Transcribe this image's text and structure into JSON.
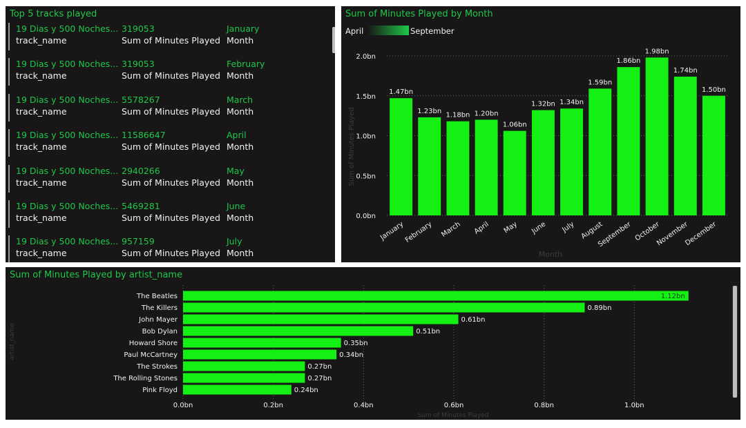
{
  "tracks_card": {
    "title": "Top 5 tracks played",
    "field_labels": [
      "track_name",
      "Sum of Minutes Played",
      "Month"
    ],
    "rows": [
      {
        "track": "19 Dias y 500 Noches...",
        "minutes": "319053",
        "month": "January"
      },
      {
        "track": "19 Dias y 500 Noches...",
        "minutes": "319053",
        "month": "February"
      },
      {
        "track": "19 Dias y 500 Noches...",
        "minutes": "5578267",
        "month": "March"
      },
      {
        "track": "19 Dias y 500 Noches...",
        "minutes": "11586647",
        "month": "April"
      },
      {
        "track": "19 Dias y 500 Noches...",
        "minutes": "2940266",
        "month": "May"
      },
      {
        "track": "19 Dias y 500 Noches...",
        "minutes": "5469281",
        "month": "June"
      },
      {
        "track": "19 Dias y 500 Noches...",
        "minutes": "957159",
        "month": "July"
      }
    ]
  },
  "monthly_panel": {
    "title": "Sum of Minutes Played by Month",
    "legend_start": "April",
    "legend_end": "September"
  },
  "artists_panel": {
    "title": "Sum of Minutes Played by artist_name"
  },
  "colors": {
    "accent": "#1ec84a",
    "bar": "#14f014",
    "panel_bg": "#181616",
    "text": "#f2f2f2"
  },
  "chart_data": [
    {
      "type": "bar",
      "title": "Sum of Minutes Played by Month",
      "xlabel": "Month",
      "ylabel": "Sum of Minutes Played",
      "categories": [
        "January",
        "February",
        "March",
        "April",
        "May",
        "June",
        "July",
        "August",
        "September",
        "October",
        "November",
        "December"
      ],
      "values": [
        1.47,
        1.23,
        1.18,
        1.2,
        1.06,
        1.32,
        1.34,
        1.59,
        1.86,
        1.98,
        1.74,
        1.5
      ],
      "data_labels": [
        "1.47bn",
        "1.23bn",
        "1.18bn",
        "1.20bn",
        "1.06bn",
        "1.32bn",
        "1.34bn",
        "1.59bn",
        "1.86bn",
        "1.98bn",
        "1.74bn",
        "1.50bn"
      ],
      "ylim": [
        0,
        2.0
      ],
      "yticks": [
        "0.0bn",
        "0.5bn",
        "1.0bn",
        "1.5bn",
        "2.0bn"
      ],
      "grid": true,
      "legend": "top-left gradient"
    },
    {
      "type": "bar",
      "orientation": "horizontal",
      "title": "Sum of Minutes Played by artist_name",
      "xlabel": "Sum of Minutes Played",
      "ylabel": "artist_name",
      "categories": [
        "The Beatles",
        "The Killers",
        "John Mayer",
        "Bob Dylan",
        "Howard Shore",
        "Paul McCartney",
        "The Strokes",
        "The Rolling Stones",
        "Pink Floyd"
      ],
      "values": [
        1.12,
        0.89,
        0.61,
        0.51,
        0.35,
        0.34,
        0.27,
        0.27,
        0.24
      ],
      "data_labels": [
        "1.12bn",
        "0.89bn",
        "0.61bn",
        "0.51bn",
        "0.35bn",
        "0.34bn",
        "0.27bn",
        "0.27bn",
        "0.24bn"
      ],
      "xlim": [
        0,
        1.2
      ],
      "xticks": [
        "0.0bn",
        "0.2bn",
        "0.4bn",
        "0.6bn",
        "0.8bn",
        "1.0bn"
      ],
      "grid": true
    }
  ]
}
